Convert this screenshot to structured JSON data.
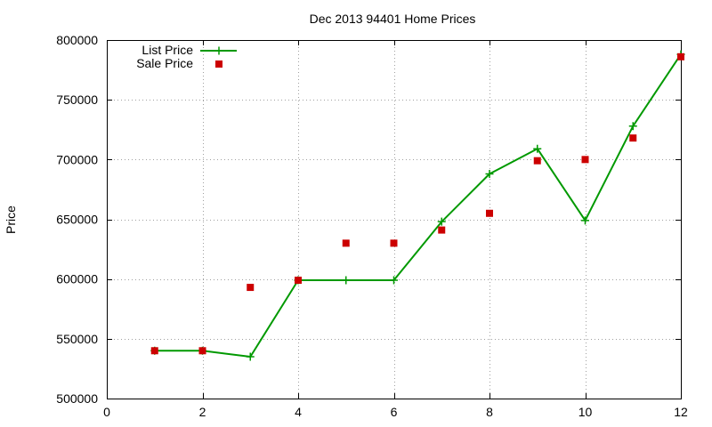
{
  "chart_data": {
    "type": "line",
    "title": "Dec 2013 94401 Home Prices",
    "xlabel": "",
    "ylabel": "Price",
    "xlim": [
      0,
      12
    ],
    "ylim": [
      500000,
      800000
    ],
    "x_ticks": [
      0,
      2,
      4,
      6,
      8,
      10,
      12
    ],
    "y_ticks": [
      500000,
      550000,
      600000,
      650000,
      700000,
      750000,
      800000
    ],
    "grid": true,
    "legend_position": "top-left",
    "series": [
      {
        "name": "List Price",
        "style": "linespoints",
        "marker": "plus",
        "color": "#009900",
        "x": [
          1,
          2,
          3,
          4,
          5,
          6,
          7,
          8,
          9,
          10,
          11,
          12
        ],
        "y": [
          540000,
          540000,
          535000,
          599000,
          599000,
          599000,
          648000,
          688000,
          709000,
          649000,
          728000,
          788000
        ]
      },
      {
        "name": "Sale Price",
        "style": "points",
        "marker": "square",
        "color": "#cc0000",
        "x": [
          1,
          2,
          3,
          4,
          5,
          6,
          7,
          8,
          9,
          10,
          11,
          12
        ],
        "y": [
          540000,
          540000,
          593000,
          599000,
          630000,
          630000,
          641000,
          655000,
          699000,
          700000,
          718000,
          786000
        ]
      }
    ]
  }
}
